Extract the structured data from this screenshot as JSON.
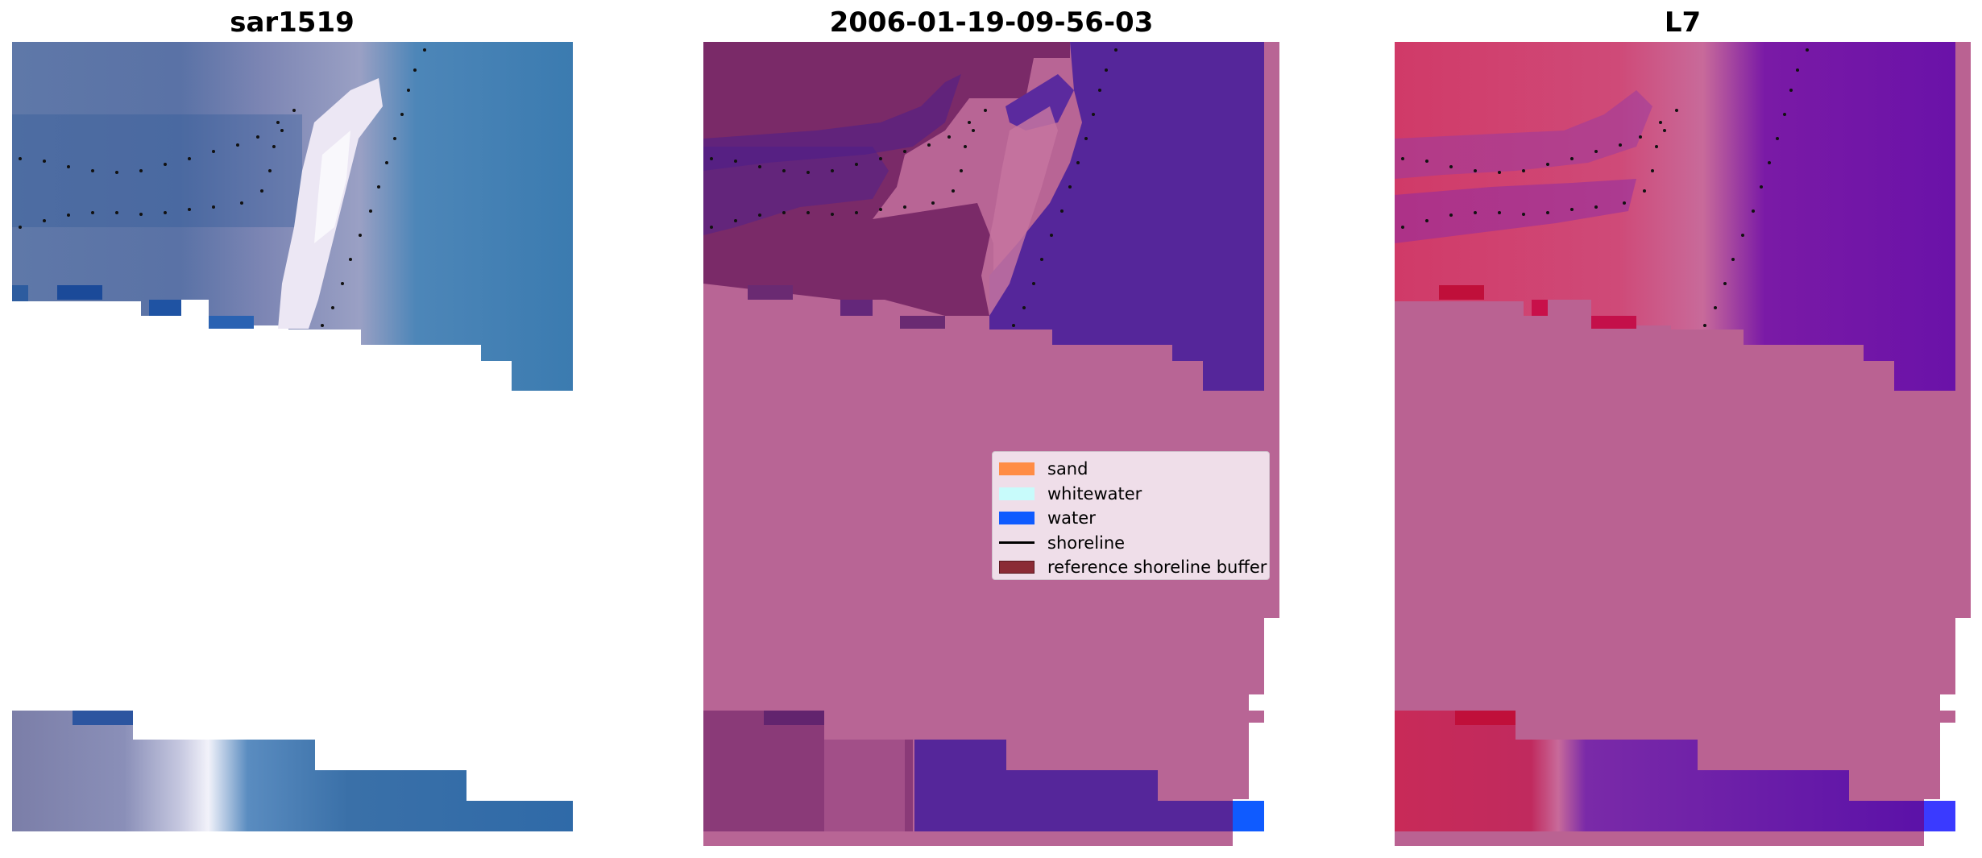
{
  "panels": [
    {
      "title": "sar1519"
    },
    {
      "title": "2006-01-19-09-56-03"
    },
    {
      "title": "L7"
    }
  ],
  "legend": {
    "items": [
      {
        "label": "sand",
        "color": "#ff8c45",
        "kind": "patch"
      },
      {
        "label": "whitewater",
        "color": "#c8fbfb",
        "kind": "patch"
      },
      {
        "label": "water",
        "color": "#0f5bff",
        "kind": "patch"
      },
      {
        "label": "shoreline",
        "color": "#000000",
        "kind": "line"
      },
      {
        "label": "reference shoreline buffer",
        "color": "#8b2b35",
        "kind": "patch"
      }
    ]
  },
  "colors": {
    "rgb_water": "#3b7bb0",
    "rgb_dark": "#2f4f8f",
    "rgb_whitewater": "#e8e6f2",
    "classified_background": "#b86595",
    "classified_water": "#55269a",
    "classified_buffer": "#7a2a68",
    "l7_background": "#ba6292",
    "l7_red": "#c81e4a",
    "l7_purple": "#6a12a8"
  }
}
